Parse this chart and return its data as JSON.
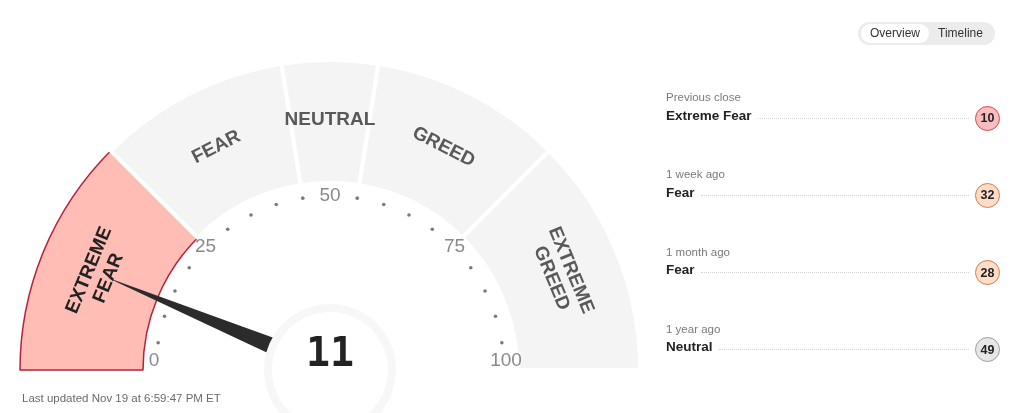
{
  "chart_data": [
    {
      "type": "donut",
      "categories": [
        "EXTREME FEAR",
        "FEAR",
        "NEUTRAL",
        "GREED",
        "EXTREME GREED"
      ],
      "values": [
        25,
        20,
        10,
        20,
        25
      ],
      "colors": [
        "#ffbdb5",
        "#f4f4f4",
        "#f4f4f4",
        "#f4f4f4",
        "#f4f4f4"
      ],
      "needle": "EXTREME FEAR",
      "annotations": [
        "11",
        "0",
        "25",
        "50",
        "75",
        "100",
        "Last updated Nov 19 at 6:59:47 PM ET"
      ]
    },
    {
      "type": "other",
      "categories": [
        "Previous close",
        "1 week ago",
        "1 month ago",
        "1 year ago"
      ],
      "values": [
        10,
        32,
        28,
        49
      ],
      "colors": [
        "#f9bcbf",
        "#fddcc8",
        "#fddcc8",
        "#e6e6e6"
      ],
      "data_labels": true,
      "annotations": [
        "Extreme Fear",
        "Fear",
        "Fear",
        "Neutral",
        "Overview",
        "Timeline"
      ]
    }
  ]
}
